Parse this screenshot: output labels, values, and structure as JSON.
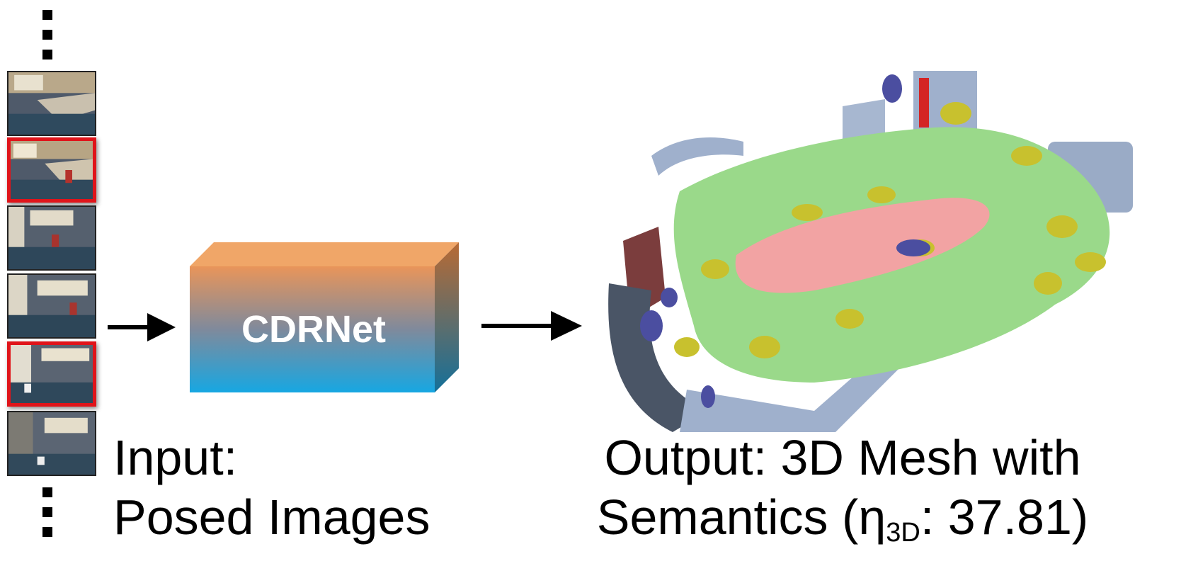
{
  "network": {
    "label": "CDRNet"
  },
  "input": {
    "line1": "Input:",
    "line2": "Posed Images",
    "frames": [
      {
        "selected": false
      },
      {
        "selected": true
      },
      {
        "selected": false
      },
      {
        "selected": false
      },
      {
        "selected": true
      },
      {
        "selected": false
      }
    ]
  },
  "output": {
    "line1": "Output: 3D Mesh with",
    "line2_prefix": "Semantics (η",
    "line2_sub": "3D",
    "line2_suffix": ": 37.81)"
  },
  "colors": {
    "box_top": "#e9955a",
    "box_bottom": "#17a7e2",
    "selected_border": "#e0141a",
    "mesh_floor": "#9ad98a",
    "mesh_table": "#f2a3a3",
    "mesh_chair": "#c8c12e",
    "mesh_wall": "#9fb0cc",
    "mesh_dark": "#4a5566",
    "mesh_blue": "#4b4ea0"
  }
}
